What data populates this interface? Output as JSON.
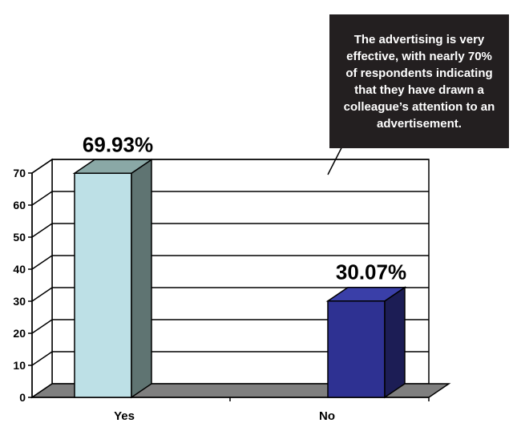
{
  "annotation": {
    "text": "The advertising is very effective, with nearly 70% of respondents indicating that they have drawn a colleague’s attention to an advertisement."
  },
  "chart_data": {
    "type": "bar",
    "categories": [
      "Yes",
      "No"
    ],
    "values": [
      69.93,
      30.07
    ],
    "data_labels": [
      "69.93%",
      "30.07%"
    ],
    "yticks": [
      0,
      10,
      20,
      30,
      40,
      50,
      60,
      70
    ],
    "ylim": [
      0,
      70
    ],
    "grid": true,
    "three_d": true,
    "colors": {
      "yes_front": "#bde0e6",
      "yes_side": "#5f7472",
      "yes_top": "#8aa8a6",
      "no_front": "#2e3192",
      "no_side": "#1c1d55",
      "no_top": "#3a3fa8",
      "floor": "#7f7f7f",
      "callout_bg": "#231f20"
    }
  }
}
